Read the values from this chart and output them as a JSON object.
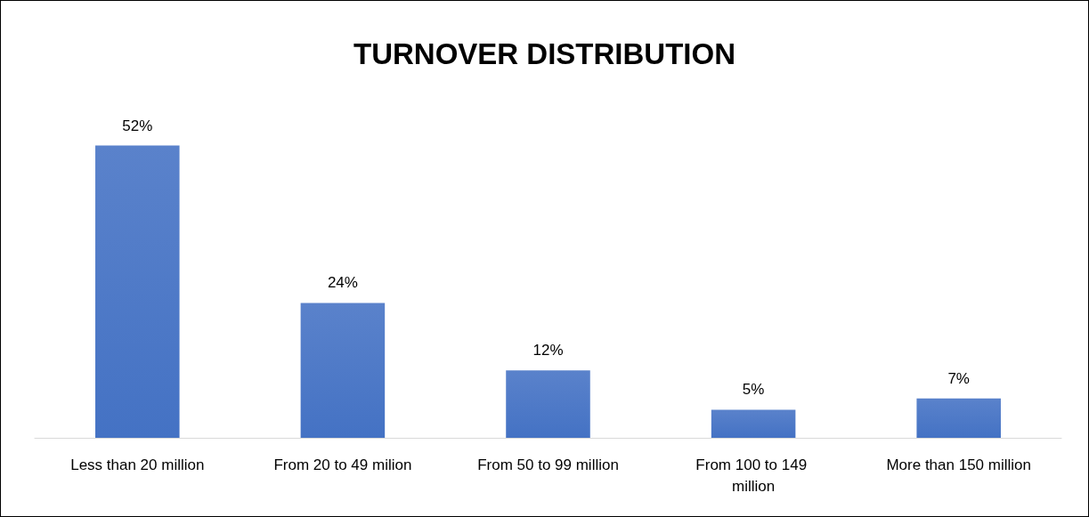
{
  "chart_data": {
    "type": "bar",
    "title": "TURNOVER DISTRIBUTION",
    "categories": [
      "Less than 20 million",
      "From 20 to 49 milion",
      "From 50 to 99 million",
      "From 100 to 149 million",
      "More than 150 million"
    ],
    "values": [
      52,
      24,
      12,
      5,
      7
    ],
    "value_labels": [
      "52%",
      "24%",
      "12%",
      "5%",
      "7%"
    ],
    "color": "#4472c4"
  }
}
